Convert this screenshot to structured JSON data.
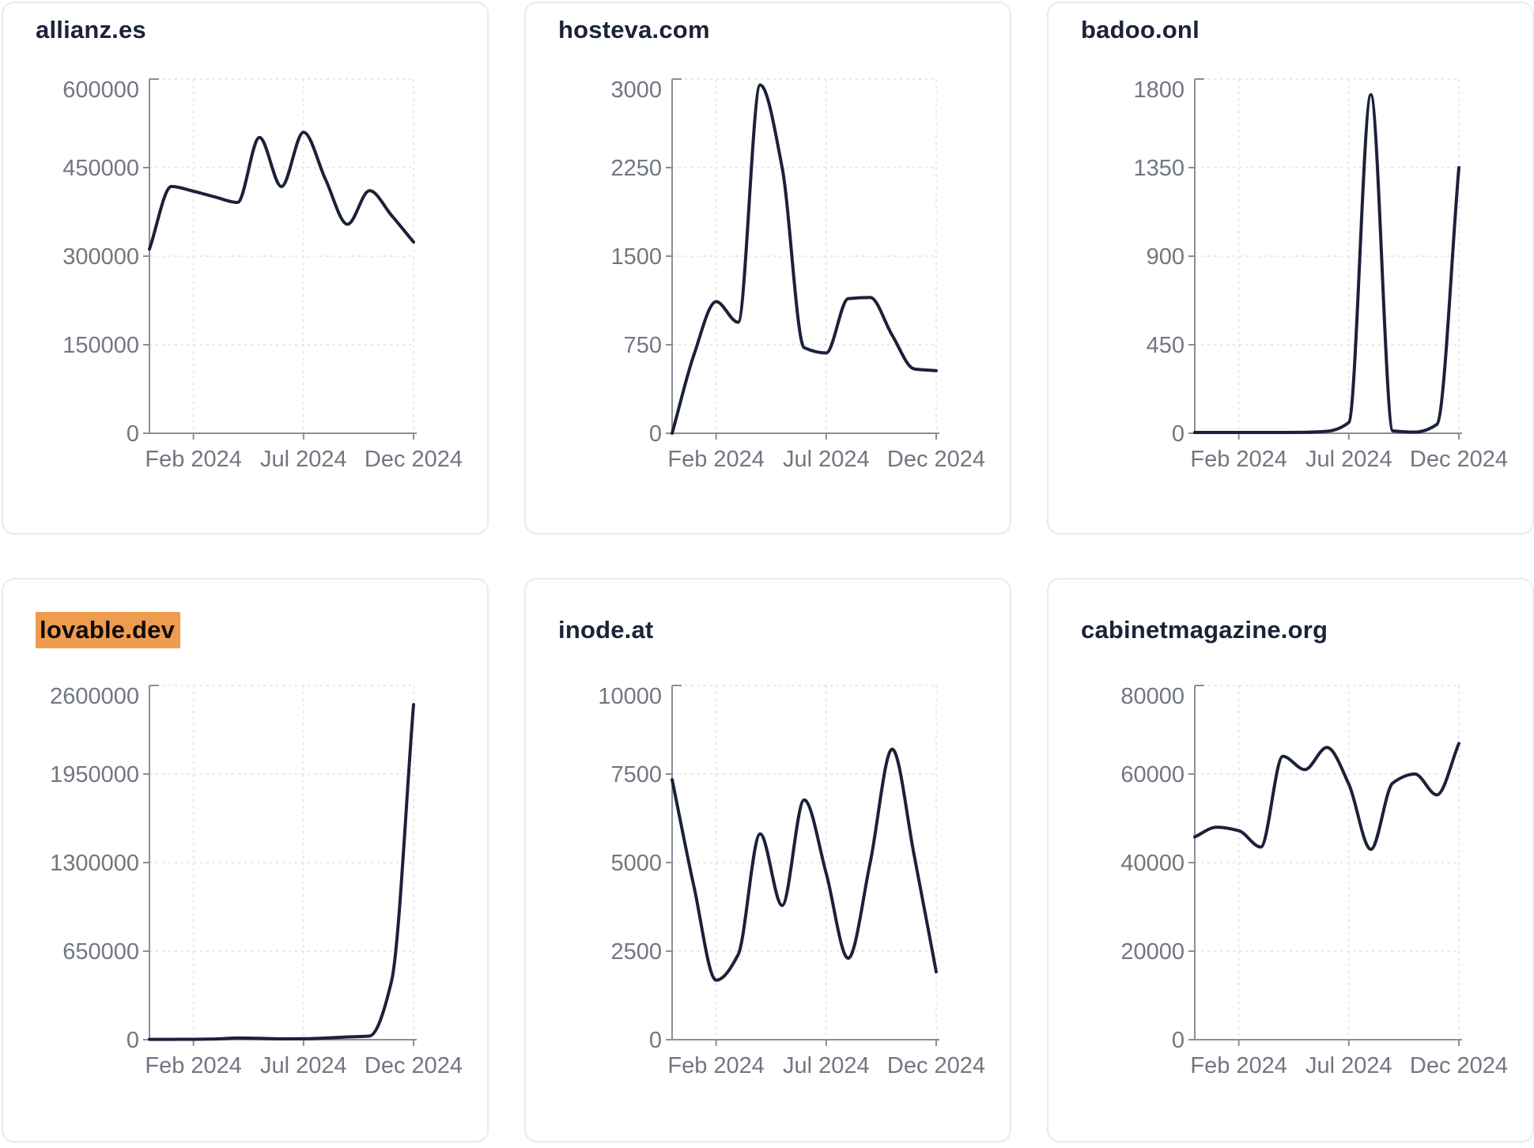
{
  "style": {
    "background": "#ffffff",
    "card_background": "#ffffff",
    "card_border": "#e9ebef",
    "line_color": "#1b2139",
    "title_color": "#1b2337",
    "tick_label_color": "#717680",
    "axis_color": "#8b8f98",
    "grid_color": "#e6e8eb",
    "highlight_background": "#f09c4f",
    "highlight_text": "#0c0c0c"
  },
  "x_tick_labels": [
    "Feb 2024",
    "Jul 2024",
    "Dec 2024"
  ],
  "x_tick_indices": [
    2,
    7,
    12
  ],
  "chart_data": [
    {
      "type": "line",
      "title": "allianz.es",
      "highlighted": false,
      "categories": [
        "2023-12",
        "2024-01",
        "2024-02",
        "2024-03",
        "2024-04",
        "2024-05",
        "2024-06",
        "2024-07",
        "2024-08",
        "2024-09",
        "2024-10",
        "2024-11",
        "2024-12"
      ],
      "values": [
        312000,
        418000,
        410000,
        400000,
        391000,
        501000,
        418000,
        510000,
        430000,
        354000,
        411000,
        369000,
        324000
      ],
      "ylim": [
        0,
        600000
      ],
      "y_ticks": [
        600000,
        450000,
        300000,
        150000,
        0
      ],
      "x_tick_labels": [
        "Feb 2024",
        "Jul 2024",
        "Dec 2024"
      ],
      "grid": true,
      "legend": "none"
    },
    {
      "type": "line",
      "title": "hosteva.com",
      "highlighted": false,
      "categories": [
        "2023-12",
        "2024-01",
        "2024-02",
        "2024-03",
        "2024-04",
        "2024-05",
        "2024-06",
        "2024-07",
        "2024-08",
        "2024-09",
        "2024-10",
        "2024-11",
        "2024-12"
      ],
      "values": [
        0,
        670,
        1115,
        940,
        2950,
        2250,
        725,
        680,
        1140,
        1150,
        830,
        545,
        530
      ],
      "ylim": [
        0,
        3000
      ],
      "y_ticks": [
        3000,
        2250,
        1500,
        750,
        0
      ],
      "x_tick_labels": [
        "Feb 2024",
        "Jul 2024",
        "Dec 2024"
      ],
      "grid": true,
      "legend": "none"
    },
    {
      "type": "line",
      "title": "badoo.onl",
      "highlighted": false,
      "categories": [
        "2023-12",
        "2024-01",
        "2024-02",
        "2024-03",
        "2024-04",
        "2024-05",
        "2024-06",
        "2024-07",
        "2024-08",
        "2024-09",
        "2024-10",
        "2024-11",
        "2024-12"
      ],
      "values": [
        4,
        4,
        4,
        4,
        4,
        5,
        10,
        55,
        1720,
        12,
        6,
        45,
        1350
      ],
      "ylim": [
        0,
        1800
      ],
      "y_ticks": [
        1800,
        1350,
        900,
        450,
        0
      ],
      "x_tick_labels": [
        "Feb 2024",
        "Jul 2024",
        "Dec 2024"
      ],
      "grid": true,
      "legend": "none"
    },
    {
      "type": "line",
      "title": "lovable.dev",
      "highlighted": true,
      "categories": [
        "2023-12",
        "2024-01",
        "2024-02",
        "2024-03",
        "2024-04",
        "2024-05",
        "2024-06",
        "2024-07",
        "2024-08",
        "2024-09",
        "2024-10",
        "2024-11",
        "2024-12"
      ],
      "values": [
        2000,
        2500,
        3000,
        5000,
        12000,
        10000,
        6000,
        7000,
        12000,
        20000,
        27000,
        430000,
        2460000
      ],
      "ylim": [
        0,
        2600000
      ],
      "y_ticks": [
        2600000,
        1950000,
        1300000,
        650000,
        0
      ],
      "x_tick_labels": [
        "Feb 2024",
        "Jul 2024",
        "Dec 2024"
      ],
      "grid": true,
      "legend": "none"
    },
    {
      "type": "line",
      "title": "inode.at",
      "highlighted": false,
      "categories": [
        "2023-12",
        "2024-01",
        "2024-02",
        "2024-03",
        "2024-04",
        "2024-05",
        "2024-06",
        "2024-07",
        "2024-08",
        "2024-09",
        "2024-10",
        "2024-11",
        "2024-12"
      ],
      "values": [
        7340,
        4300,
        1680,
        2400,
        5810,
        3790,
        6770,
        4700,
        2300,
        5000,
        8200,
        5200,
        1915
      ],
      "ylim": [
        0,
        10000
      ],
      "y_ticks": [
        10000,
        7500,
        5000,
        2500,
        0
      ],
      "x_tick_labels": [
        "Feb 2024",
        "Jul 2024",
        "Dec 2024"
      ],
      "grid": true,
      "legend": "none"
    },
    {
      "type": "line",
      "title": "cabinetmagazine.org",
      "highlighted": false,
      "categories": [
        "2023-12",
        "2024-01",
        "2024-02",
        "2024-03",
        "2024-04",
        "2024-05",
        "2024-06",
        "2024-07",
        "2024-08",
        "2024-09",
        "2024-10",
        "2024-11",
        "2024-12"
      ],
      "values": [
        45800,
        48000,
        47200,
        43500,
        64000,
        61000,
        66000,
        57700,
        43000,
        58000,
        60000,
        55300,
        66900
      ],
      "ylim": [
        0,
        80000
      ],
      "y_ticks": [
        80000,
        60000,
        40000,
        20000,
        0
      ],
      "x_tick_labels": [
        "Feb 2024",
        "Jul 2024",
        "Dec 2024"
      ],
      "grid": true,
      "legend": "none"
    }
  ]
}
